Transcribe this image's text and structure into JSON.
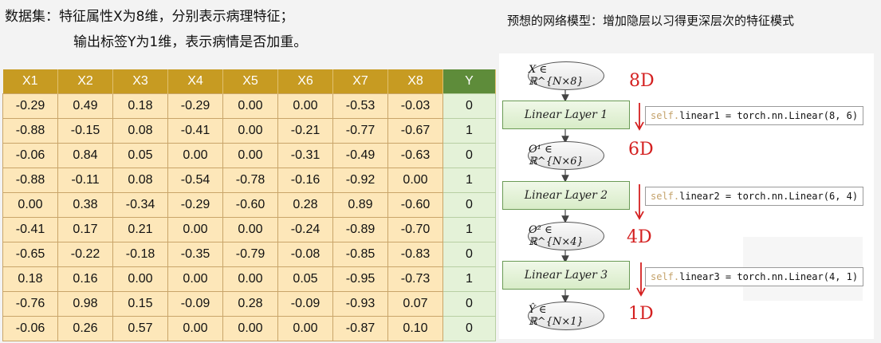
{
  "left": {
    "line1": "数据集：特征属性X为8维，分别表示病理特征；",
    "line2": "输出标签Y为1维，表示病情是否加重。"
  },
  "right_title": "预想的网络模型：增加隐层以习得更深层次的特征模式",
  "table": {
    "headers": [
      "X1",
      "X2",
      "X3",
      "X4",
      "X5",
      "X6",
      "X7",
      "X8",
      "Y"
    ],
    "rows": [
      [
        "-0.29",
        "0.49",
        "0.18",
        "-0.29",
        "0.00",
        "0.00",
        "-0.53",
        "-0.03",
        "0"
      ],
      [
        "-0.88",
        "-0.15",
        "0.08",
        "-0.41",
        "0.00",
        "-0.21",
        "-0.77",
        "-0.67",
        "1"
      ],
      [
        "-0.06",
        "0.84",
        "0.05",
        "0.00",
        "0.00",
        "-0.31",
        "-0.49",
        "-0.63",
        "0"
      ],
      [
        "-0.88",
        "-0.11",
        "0.08",
        "-0.54",
        "-0.78",
        "-0.16",
        "-0.92",
        "0.00",
        "1"
      ],
      [
        "0.00",
        "0.38",
        "-0.34",
        "-0.29",
        "-0.60",
        "0.28",
        "0.89",
        "-0.60",
        "0"
      ],
      [
        "-0.41",
        "0.17",
        "0.21",
        "0.00",
        "0.00",
        "-0.24",
        "-0.89",
        "-0.70",
        "1"
      ],
      [
        "-0.65",
        "-0.22",
        "-0.18",
        "-0.35",
        "-0.79",
        "-0.08",
        "-0.85",
        "-0.83",
        "0"
      ],
      [
        "0.18",
        "0.16",
        "0.00",
        "0.00",
        "0.00",
        "0.05",
        "-0.95",
        "-0.73",
        "1"
      ],
      [
        "-0.76",
        "0.98",
        "0.15",
        "-0.09",
        "0.28",
        "-0.09",
        "-0.93",
        "0.07",
        "0"
      ],
      [
        "-0.06",
        "0.26",
        "0.57",
        "0.00",
        "0.00",
        "0.00",
        "-0.87",
        "0.10",
        "0"
      ]
    ]
  },
  "diagram": {
    "nodes": [
      "X ∈ ℝ^{N×8}",
      "O¹ ∈ ℝ^{N×6}",
      "O² ∈ ℝ^{N×4}",
      "Ŷ ∈ ℝ^{N×1}"
    ],
    "layers": [
      "Linear Layer 1",
      "Linear Layer 2",
      "Linear Layer 3"
    ],
    "code": [
      {
        "self": "self.",
        "rest": "linear1 = torch.nn.Linear(8, 6)"
      },
      {
        "self": "self.",
        "rest": "linear2 = torch.nn.Linear(6, 4)"
      },
      {
        "self": "self.",
        "rest": "linear3 = torch.nn.Linear(4, 1)"
      }
    ],
    "annotations": [
      "8D",
      "6D",
      "4D",
      "1D"
    ]
  }
}
